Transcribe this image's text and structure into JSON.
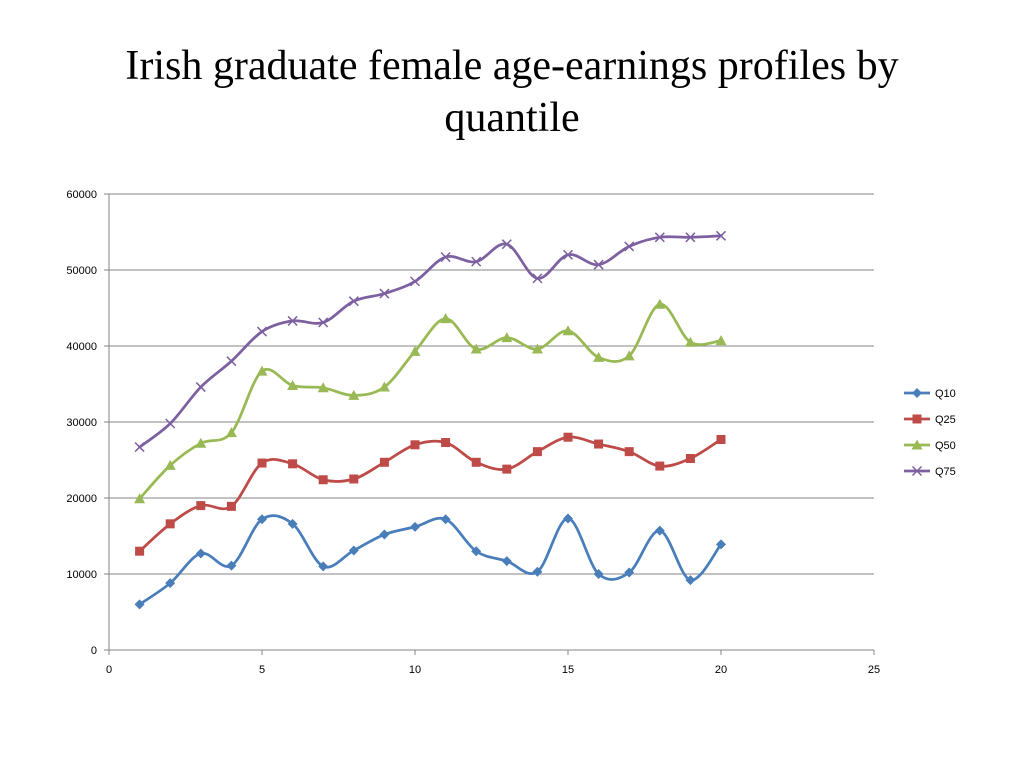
{
  "chart_data": {
    "type": "line",
    "title": "Irish graduate female age-earnings profiles by quantile",
    "xlabel": "",
    "ylabel": "",
    "xlim": [
      0,
      25
    ],
    "ylim": [
      0,
      60000
    ],
    "xticks": [
      0,
      5,
      10,
      15,
      20,
      25
    ],
    "yticks": [
      0,
      10000,
      20000,
      30000,
      40000,
      50000,
      60000
    ],
    "grid": "horizontal",
    "legend_position": "right",
    "x": [
      1,
      2,
      3,
      4,
      5,
      6,
      7,
      8,
      9,
      10,
      11,
      12,
      13,
      14,
      15,
      16,
      17,
      18,
      19,
      20
    ],
    "series": [
      {
        "name": "Q10",
        "color": "#4a7ebb",
        "marker": "diamond",
        "values": [
          6000,
          8800,
          12700,
          11100,
          17200,
          16600,
          11000,
          13100,
          15200,
          16200,
          17200,
          13000,
          11700,
          10300,
          17300,
          10000,
          10200,
          15700,
          9200,
          13900
        ]
      },
      {
        "name": "Q25",
        "color": "#be4b48",
        "marker": "square",
        "values": [
          13000,
          16600,
          19000,
          18900,
          24600,
          24500,
          22400,
          22500,
          24700,
          27000,
          27300,
          24700,
          23800,
          26100,
          28000,
          27100,
          26100,
          24200,
          25200,
          27700
        ]
      },
      {
        "name": "Q50",
        "color": "#98b954",
        "marker": "triangle",
        "values": [
          19900,
          24300,
          27200,
          28600,
          36700,
          34800,
          34500,
          33500,
          34600,
          39300,
          43600,
          39600,
          41100,
          39600,
          42000,
          38500,
          38700,
          45500,
          40500,
          40700
        ]
      },
      {
        "name": "Q75",
        "color": "#7d60a0",
        "marker": "x",
        "values": [
          26700,
          29800,
          34600,
          38000,
          41900,
          43300,
          43100,
          45900,
          46900,
          48500,
          51700,
          51100,
          53400,
          48900,
          52000,
          50700,
          53100,
          54300,
          54300,
          54500
        ]
      }
    ]
  }
}
